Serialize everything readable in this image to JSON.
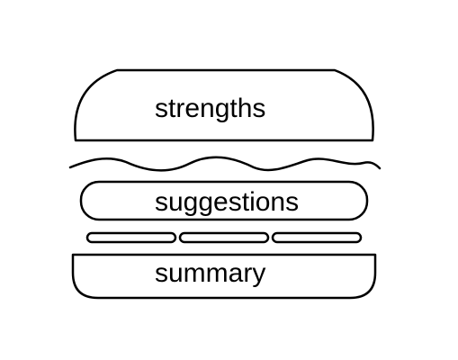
{
  "diagram": {
    "top_bun": {
      "label": "strengths"
    },
    "lettuce": {
      "icon": "lettuce-wave-icon"
    },
    "patty": {
      "label": "suggestions"
    },
    "cheese": {
      "icon": "cheese-strips-icon",
      "strip_count": 3
    },
    "bottom_bun": {
      "label": "summary"
    }
  },
  "colors": {
    "stroke": "#000000",
    "fill": "#ffffff",
    "text": "#000000"
  }
}
